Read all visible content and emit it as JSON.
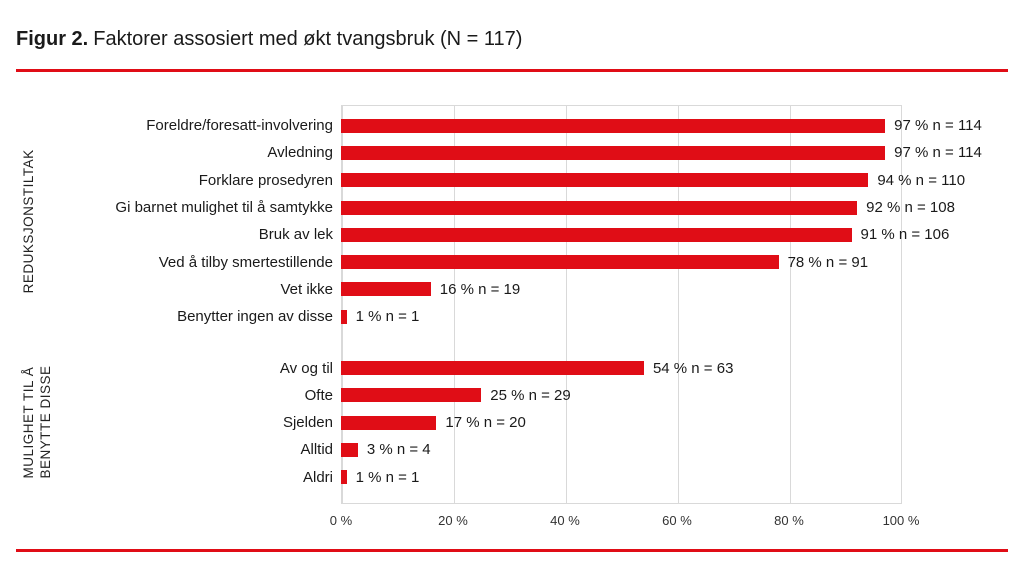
{
  "figure": {
    "label": "Figur 2.",
    "title": "Faktorer assosiert med økt tvangsbruk (N = 117)"
  },
  "accent_color": "#e00d16",
  "chart_data": {
    "type": "bar",
    "orientation": "horizontal",
    "title": "Figur 2. Faktorer assosiert med økt tvangsbruk (N = 117)",
    "xlabel": "",
    "ylabel": "",
    "xlim": [
      0,
      100
    ],
    "x_ticks": [
      "0 %",
      "20 %",
      "40 %",
      "60 %",
      "80 %",
      "100 %"
    ],
    "grid": true,
    "bar_color": "#e00d16",
    "gridline_color": "#d9d9d9",
    "groups": [
      {
        "group_label_lines": [
          "REDUKSJONSTILTAK"
        ],
        "rows": [
          {
            "label": "Foreldre/foresatt-involvering",
            "pct": 97,
            "n": 114,
            "value_label": "97 % n = 114"
          },
          {
            "label": "Avledning",
            "pct": 97,
            "n": 114,
            "value_label": "97 % n = 114"
          },
          {
            "label": "Forklare prosedyren",
            "pct": 94,
            "n": 110,
            "value_label": "94 % n = 110"
          },
          {
            "label": "Gi barnet mulighet til å samtykke",
            "pct": 92,
            "n": 108,
            "value_label": "92 % n = 108"
          },
          {
            "label": "Bruk av lek",
            "pct": 91,
            "n": 106,
            "value_label": "91 % n = 106"
          },
          {
            "label": "Ved å tilby smertestillende",
            "pct": 78,
            "n": 91,
            "value_label": "78 % n = 91"
          },
          {
            "label": "Vet ikke",
            "pct": 16,
            "n": 19,
            "value_label": "16 % n = 19"
          },
          {
            "label": "Benytter ingen av disse",
            "pct": 1,
            "n": 1,
            "value_label": "1 % n = 1"
          }
        ]
      },
      {
        "group_label_lines": [
          "MULIGHET TIL Å",
          "BENYTTE DISSE"
        ],
        "rows": [
          {
            "label": "Av og til",
            "pct": 54,
            "n": 63,
            "value_label": "54 % n = 63"
          },
          {
            "label": "Ofte",
            "pct": 25,
            "n": 29,
            "value_label": "25 % n = 29"
          },
          {
            "label": "Sjelden",
            "pct": 17,
            "n": 20,
            "value_label": "17 % n = 20"
          },
          {
            "label": "Alltid",
            "pct": 3,
            "n": 4,
            "value_label": "3 % n = 4"
          },
          {
            "label": "Aldri",
            "pct": 1,
            "n": 1,
            "value_label": "1 % n = 1"
          }
        ]
      }
    ]
  }
}
